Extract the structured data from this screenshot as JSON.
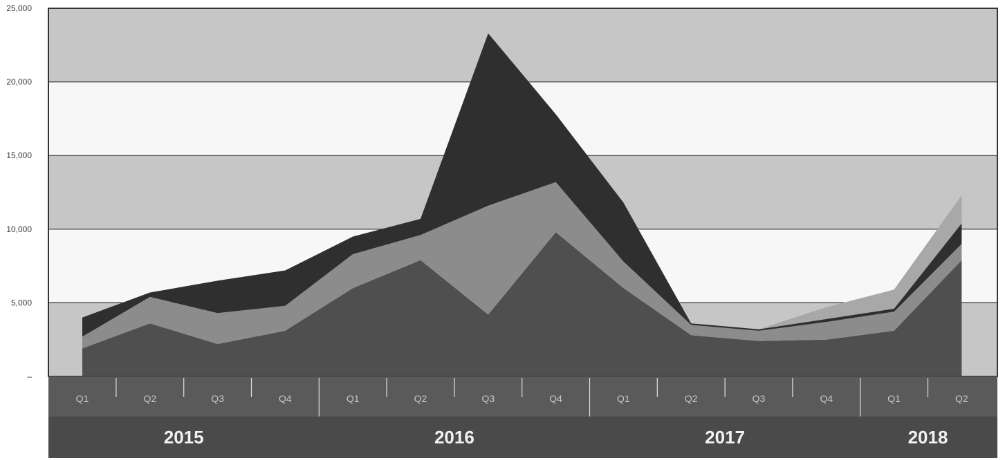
{
  "chart_data": {
    "type": "area",
    "stacked": true,
    "title": "",
    "xlabel": "",
    "ylabel": "",
    "ylim": [
      0,
      25000
    ],
    "yticks": [
      "–",
      "5,000",
      "10,000",
      "15,000",
      "20,000",
      "25,000"
    ],
    "ytick_values": [
      0,
      5000,
      10000,
      15000,
      20000,
      25000
    ],
    "grid": true,
    "legend": "none",
    "categories": [
      {
        "year": "2015",
        "quarter": "Q1"
      },
      {
        "year": "2015",
        "quarter": "Q2"
      },
      {
        "year": "2015",
        "quarter": "Q3"
      },
      {
        "year": "2015",
        "quarter": "Q4"
      },
      {
        "year": "2016",
        "quarter": "Q1"
      },
      {
        "year": "2016",
        "quarter": "Q2"
      },
      {
        "year": "2016",
        "quarter": "Q3"
      },
      {
        "year": "2016",
        "quarter": "Q4"
      },
      {
        "year": "2017",
        "quarter": "Q1"
      },
      {
        "year": "2017",
        "quarter": "Q2"
      },
      {
        "year": "2017",
        "quarter": "Q3"
      },
      {
        "year": "2017",
        "quarter": "Q4"
      },
      {
        "year": "2018",
        "quarter": "Q1"
      },
      {
        "year": "2018",
        "quarter": "Q2"
      }
    ],
    "years": [
      "2015",
      "2016",
      "2017",
      "2018"
    ],
    "series": [
      {
        "values": [
          1900,
          3600,
          2200,
          3100,
          6000,
          7900,
          4200,
          9800,
          6000,
          2800,
          2400,
          2500,
          3100,
          7900
        ],
        "color": "#4f4f4f"
      },
      {
        "values": [
          800,
          1800,
          2100,
          1700,
          2300,
          1700,
          7400,
          3400,
          1800,
          700,
          700,
          1200,
          1300,
          1100
        ],
        "color": "#8c8c8c"
      },
      {
        "values": [
          1300,
          300,
          2200,
          2400,
          1200,
          1100,
          11700,
          4600,
          4000,
          100,
          100,
          200,
          200,
          1400
        ],
        "color": "#2f2f2f"
      },
      {
        "values": [
          0,
          0,
          0,
          0,
          0,
          0,
          0,
          0,
          0,
          0,
          0,
          800,
          1300,
          1900
        ],
        "color": "#a8a8a8"
      }
    ],
    "colors": {
      "band_dark": "#c6c6c6",
      "band_light": "#f7f7f7",
      "quarter_strip": "#5a5a5a",
      "year_strip": "#4a4a4a",
      "gridline": "#2a2a2a",
      "frame": "#333333"
    }
  }
}
